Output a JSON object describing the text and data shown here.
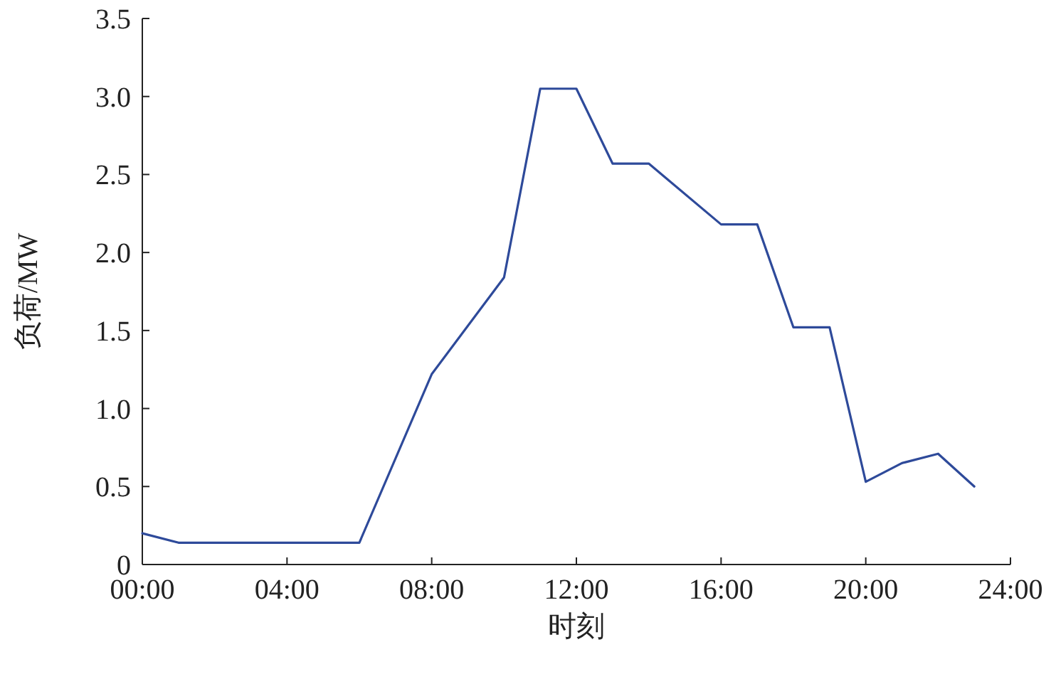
{
  "chart_data": {
    "type": "line",
    "xlabel": "时刻",
    "ylabel": "负荷/MW",
    "x": [
      0,
      1,
      6,
      8,
      10,
      11,
      12,
      13,
      14,
      16,
      17,
      18,
      19,
      20,
      21,
      22,
      23
    ],
    "series": [
      {
        "color": "#2e4a9a",
        "values": [
          0.2,
          0.14,
          0.14,
          1.22,
          1.84,
          3.05,
          3.05,
          2.57,
          2.57,
          2.18,
          2.18,
          1.52,
          1.52,
          0.53,
          0.65,
          0.71,
          0.5
        ]
      }
    ],
    "xlim": [
      0,
      24
    ],
    "xticks": [
      {
        "value": 0,
        "label": "00:00"
      },
      {
        "value": 4,
        "label": "04:00"
      },
      {
        "value": 8,
        "label": "08:00"
      },
      {
        "value": 12,
        "label": "12:00"
      },
      {
        "value": 16,
        "label": "16:00"
      },
      {
        "value": 20,
        "label": "20:00"
      },
      {
        "value": 24,
        "label": "24:00"
      }
    ],
    "ylim": [
      0,
      3.5
    ],
    "yticks": [
      0,
      0.5,
      {
        "value": 1,
        "label": "1.0"
      },
      1.5,
      {
        "value": 2,
        "label": "2.0"
      },
      2.5,
      {
        "value": 3,
        "label": "3.0"
      },
      3.5
    ],
    "grid": false,
    "marker": "none",
    "line_style": "solid"
  }
}
